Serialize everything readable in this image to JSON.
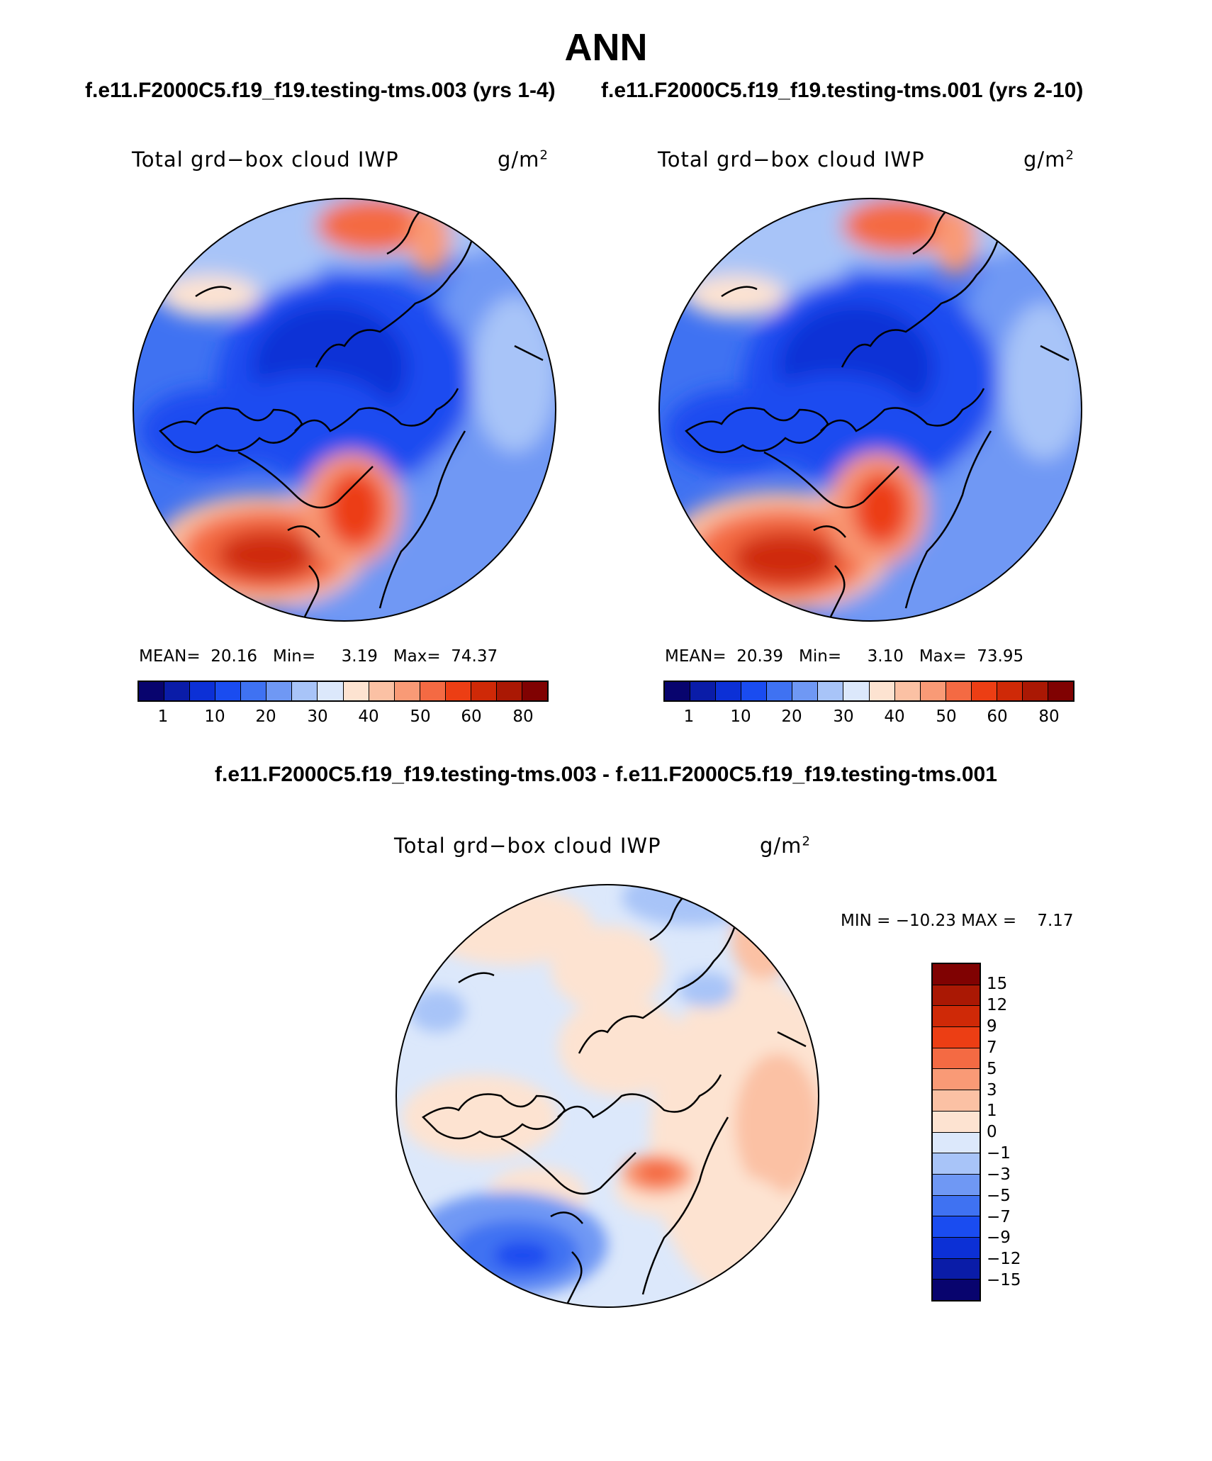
{
  "title": "ANN",
  "case_left": "f.e11.F2000C5.f19_f19.testing-tms.003 (yrs 1-4)",
  "case_right": "f.e11.F2000C5.f19_f19.testing-tms.001 (yrs 2-10)",
  "diff_title": "f.e11.F2000C5.f19_f19.testing-tms.003 - f.e11.F2000C5.f19_f19.testing-tms.001",
  "variable": "Total grd−box cloud IWP",
  "units_base": "g/m",
  "units_exp": "2",
  "panels": {
    "left": {
      "mean_label": "MEAN=",
      "mean": "20.16",
      "min_label": "Min=",
      "min": "3.19",
      "max_label": "Max=",
      "max": "74.37"
    },
    "right": {
      "mean_label": "MEAN=",
      "mean": "20.39",
      "min_label": "Min=",
      "min": "3.10",
      "max_label": "Max=",
      "max": "73.95"
    },
    "diff": {
      "min_label": "MIN =",
      "min": "−10.23",
      "max_label": "MAX =",
      "max": "7.17"
    }
  },
  "colorbar_main": {
    "ticks": [
      "1",
      "10",
      "20",
      "30",
      "40",
      "50",
      "60",
      "80"
    ],
    "colors": [
      "#08046e",
      "#0a1ca8",
      "#0c30d6",
      "#1a4cf0",
      "#3f72f2",
      "#6f98f4",
      "#a8c4f8",
      "#dce8fb",
      "#fde3d1",
      "#fbc1a4",
      "#f99a76",
      "#f46a43",
      "#ec3e14",
      "#cf2907",
      "#aa1804",
      "#800202"
    ]
  },
  "colorbar_diff": {
    "ticks": [
      "15",
      "12",
      "9",
      "7",
      "5",
      "3",
      "1",
      "0",
      "−1",
      "−3",
      "−5",
      "−7",
      "−9",
      "−12",
      "−15"
    ],
    "colors": [
      "#800202",
      "#aa1804",
      "#cf2907",
      "#ec3e14",
      "#f46a43",
      "#f99a76",
      "#fbc1a4",
      "#fde3d1",
      "#dce8fb",
      "#a8c4f8",
      "#6f98f4",
      "#3f72f2",
      "#1a4cf0",
      "#0c30d6",
      "#0a1ca8",
      "#08046e"
    ]
  }
}
